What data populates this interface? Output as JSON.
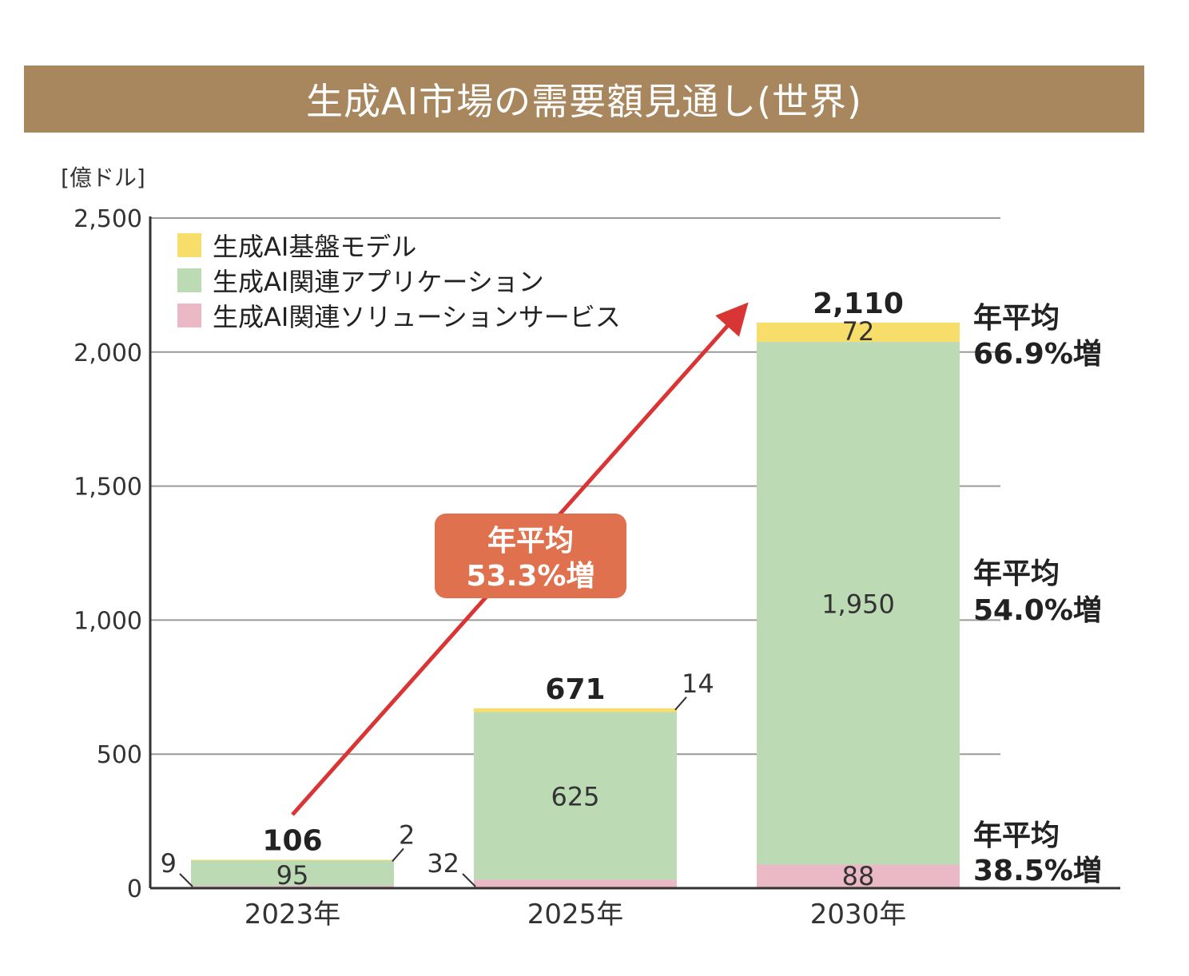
{
  "title": "生成AI市場の需要額見通し(世界)",
  "colors": {
    "title_bg": "#a8865e",
    "foundation": "#f7dd6a",
    "application": "#bcdbb5",
    "solution": "#eab9c5",
    "arrow": "#d93535",
    "callout": "#e0714e"
  },
  "chart_data": {
    "type": "bar",
    "stacked": true,
    "unit_label": "[億ドル]",
    "ylim": [
      0,
      2500
    ],
    "yticks": [
      0,
      500,
      1000,
      1500,
      2000,
      2500
    ],
    "ytick_labels": [
      "0",
      "500",
      "1,000",
      "1,500",
      "2,000",
      "2,500"
    ],
    "categories": [
      "2023年",
      "2025年",
      "2030年"
    ],
    "series": [
      {
        "name": "生成AI関連ソリューションサービス",
        "key": "solution",
        "values": [
          9,
          32,
          88
        ],
        "labels": [
          "9",
          "32",
          "88"
        ]
      },
      {
        "name": "生成AI関連アプリケーション",
        "key": "application",
        "values": [
          95,
          625,
          1950
        ],
        "labels": [
          "95",
          "625",
          "1,950"
        ]
      },
      {
        "name": "生成AI基盤モデル",
        "key": "foundation",
        "values": [
          2,
          14,
          72
        ],
        "labels": [
          "2",
          "14",
          "72"
        ]
      }
    ],
    "totals": [
      106,
      671,
      2110
    ],
    "total_labels": [
      "106",
      "671",
      "2,110"
    ],
    "legend_order": [
      "生成AI基盤モデル",
      "生成AI関連アプリケーション",
      "生成AI関連ソリューションサービス"
    ],
    "legend_position": "top-left",
    "grid": true,
    "annotations": {
      "overall_growth": {
        "line1": "年平均",
        "line2": "53.3%増"
      },
      "segment_growth": [
        {
          "segment": "foundation",
          "line1": "年平均",
          "line2": "66.9%増"
        },
        {
          "segment": "application",
          "line1": "年平均",
          "line2": "54.0%増"
        },
        {
          "segment": "solution",
          "line1": "年平均",
          "line2": "38.5%増"
        }
      ]
    }
  }
}
